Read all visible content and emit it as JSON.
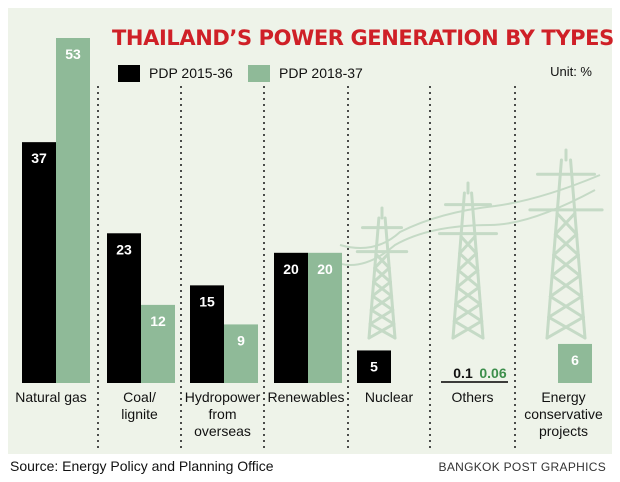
{
  "title": "THAILAND’S POWER GENERATION BY TYPES",
  "unit": "Unit: %",
  "source": "Source: Energy Policy and Planning Office",
  "credit": "BANGKOK POST GRAPHICS",
  "colors": {
    "panel": "#eef3e9",
    "title": "#cf2027",
    "pdp_2015": "#000000",
    "pdp_2018": "#8fba98",
    "pylon": "#c5dac6",
    "green_text": "#3d8f4c"
  },
  "legend": [
    {
      "label": "PDP 2015-36",
      "color": "#000000"
    },
    {
      "label": "PDP 2018-37",
      "color": "#8fba98"
    }
  ],
  "decorations": [
    "power-pylon-icon",
    "power-pylon-icon",
    "power-pylon-icon"
  ],
  "chart_data": {
    "type": "bar",
    "title": "THAILAND’S POWER GENERATION BY TYPES",
    "unit": "Unit: %",
    "categories": [
      {
        "label_lines": [
          "Natural gas"
        ]
      },
      {
        "label_lines": [
          "Coal/",
          "lignite"
        ]
      },
      {
        "label_lines": [
          "Hydropower",
          "from",
          "overseas"
        ]
      },
      {
        "label_lines": [
          "Renewables"
        ]
      },
      {
        "label_lines": [
          "Nuclear"
        ]
      },
      {
        "label_lines": [
          "Others"
        ]
      },
      {
        "label_lines": [
          "Energy",
          "conservative",
          "projects"
        ]
      }
    ],
    "series": [
      {
        "name": "PDP 2015-36",
        "color": "#000000",
        "values": [
          37,
          23,
          15,
          20,
          5,
          0.1,
          null
        ],
        "labels": [
          "37",
          "23",
          "15",
          "20",
          "5",
          "0.1",
          ""
        ]
      },
      {
        "name": "PDP 2018-37",
        "color": "#8fba98",
        "values": [
          53,
          12,
          9,
          20,
          null,
          0.06,
          6
        ],
        "labels": [
          "53",
          "12",
          "9",
          "20",
          "",
          "0.06",
          "6"
        ]
      }
    ],
    "ylim": [
      0,
      53
    ],
    "grid": false,
    "legend_position": "top-left"
  }
}
